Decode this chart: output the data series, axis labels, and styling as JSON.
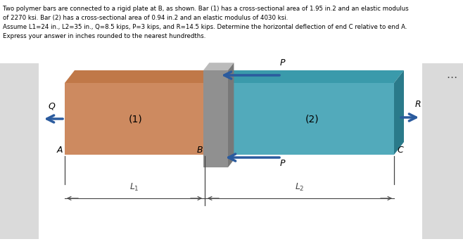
{
  "title_lines": [
    "Two polymer bars are connected to a rigid plate at B, as shown. Bar (1) has a cross-sectional area of 1.95 in.2 and an elastic modulus",
    "of 2270 ksi. Bar (2) has a cross-sectional area of 0.94 in.2 and an elastic modulus of 4030 ksi.",
    "Assume L1=24 in., L2=35 in., Q=8.5 kips, P=3 kips, and R=14.5 kips. Determine the horizontal deflection of end C relative to end A.",
    "Express your answer in inches rounded to the nearest hundredths."
  ],
  "bar1_color": "#CD8A60",
  "bar1_top_color": "#C07848",
  "bar2_color": "#52AABB",
  "bar2_top_color": "#3A9AAB",
  "bar2_right_color": "#2A7A8A",
  "plate_front_color": "#909090",
  "plate_top_color": "#BBBBBB",
  "plate_right_color": "#787878",
  "arrow_color": "#2B5B9E",
  "text_color": "#000000",
  "bg_color": "#FFFFFF",
  "panel_bg": "#E8E8E8",
  "dots_color": "#444444"
}
